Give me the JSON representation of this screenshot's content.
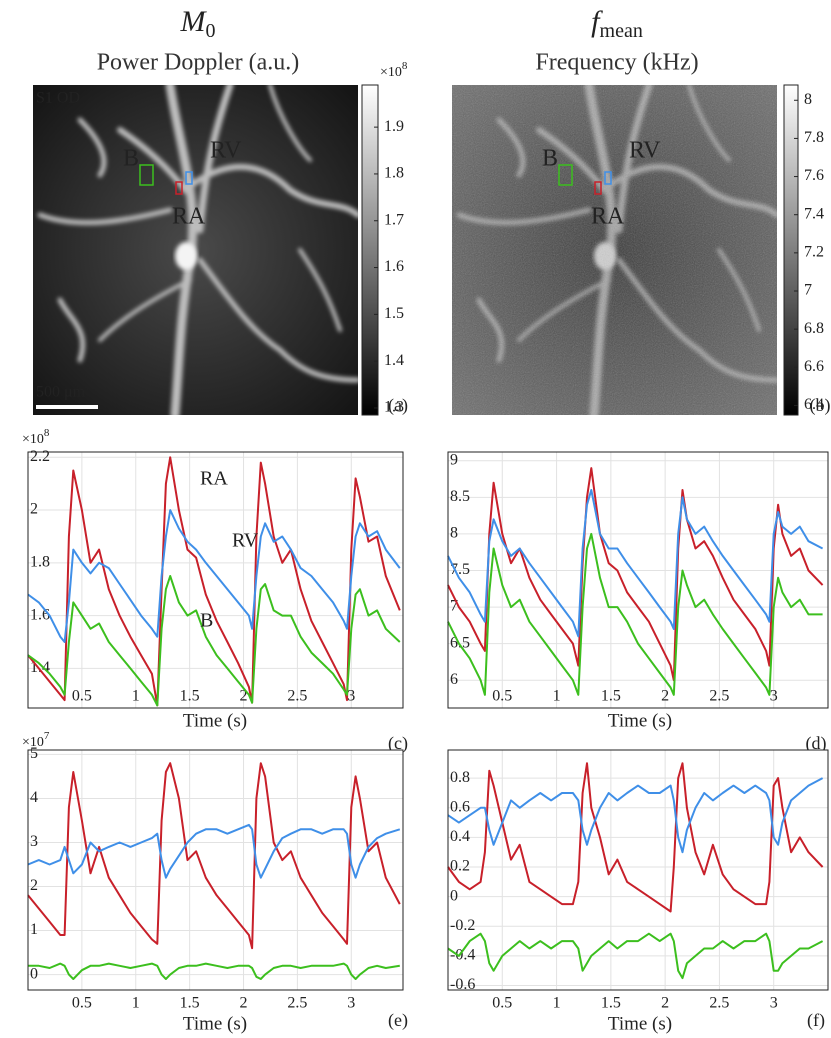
{
  "chart_data": [
    {
      "type": "image",
      "title": {
        "symbol": "M",
        "subscript": "0"
      },
      "subtitle": "Power Doppler (a.u.)",
      "label": "S1 OD",
      "scale_bar": "500 μm",
      "roi_labels": [
        "B",
        "RV",
        "RA"
      ],
      "roi_colors": [
        "#3cbf1e",
        "#3f8fe8",
        "#c8202a"
      ],
      "ylim": [
        1.285,
        1.99
      ],
      "yticks": [
        1.3,
        1.4,
        1.5,
        1.6,
        1.7,
        1.8,
        1.9
      ],
      "multiplier": {
        "base": "×10",
        "exponent": "8"
      },
      "panel": "(a)"
    },
    {
      "type": "image",
      "title": {
        "symbol": "f",
        "subscript": "mean"
      },
      "subtitle": "Frequency (kHz)",
      "roi_labels": [
        "B",
        "RV",
        "RA"
      ],
      "roi_colors": [
        "#3cbf1e",
        "#3f8fe8",
        "#c8202a"
      ],
      "ylim": [
        6.35,
        8.08
      ],
      "yticks": [
        6.4,
        6.6,
        6.8,
        7,
        7.2,
        7.4,
        7.6,
        7.8,
        8
      ],
      "panel": "(b)"
    },
    {
      "type": "line",
      "xlabel": "Time (s)",
      "panel": "(c)",
      "multiplier": {
        "base": "×10",
        "exponent": "8"
      },
      "grid": true,
      "xlim": [
        0,
        3.48
      ],
      "xticks": [
        0.5,
        1,
        1.5,
        2,
        2.5,
        3
      ],
      "ylim": [
        1.25,
        2.22
      ],
      "yticks": [
        1.4,
        1.6,
        1.8,
        2,
        2.2
      ],
      "x": [
        0,
        0.1,
        0.2,
        0.3,
        0.34,
        0.38,
        0.42,
        0.5,
        0.58,
        0.66,
        0.75,
        0.85,
        0.95,
        1.05,
        1.15,
        1.2,
        1.24,
        1.28,
        1.32,
        1.4,
        1.48,
        1.56,
        1.65,
        1.75,
        1.85,
        1.95,
        2.05,
        2.08,
        2.12,
        2.16,
        2.2,
        2.28,
        2.36,
        2.44,
        2.53,
        2.63,
        2.73,
        2.83,
        2.93,
        2.96,
        3.0,
        3.04,
        3.08,
        3.16,
        3.24,
        3.32,
        3.45
      ],
      "series": [
        {
          "name": "RA",
          "color": "#c8202a",
          "values": [
            1.45,
            1.4,
            1.35,
            1.3,
            1.28,
            1.9,
            2.15,
            2.0,
            1.8,
            1.85,
            1.7,
            1.6,
            1.52,
            1.45,
            1.38,
            1.26,
            1.7,
            2.1,
            2.2,
            2.0,
            1.85,
            1.82,
            1.68,
            1.58,
            1.5,
            1.42,
            1.33,
            1.27,
            1.9,
            2.18,
            2.1,
            1.9,
            1.8,
            1.85,
            1.7,
            1.58,
            1.5,
            1.42,
            1.34,
            1.28,
            1.85,
            2.12,
            2.05,
            1.88,
            1.9,
            1.75,
            1.62
          ]
        },
        {
          "name": "RV",
          "color": "#3f8fe8",
          "values": [
            1.68,
            1.65,
            1.6,
            1.52,
            1.5,
            1.65,
            1.85,
            1.8,
            1.76,
            1.8,
            1.78,
            1.72,
            1.66,
            1.6,
            1.55,
            1.52,
            1.75,
            1.9,
            2.0,
            1.93,
            1.88,
            1.85,
            1.8,
            1.75,
            1.7,
            1.65,
            1.6,
            1.55,
            1.75,
            1.9,
            1.95,
            1.88,
            1.9,
            1.85,
            1.78,
            1.75,
            1.7,
            1.65,
            1.58,
            1.55,
            1.75,
            1.9,
            1.95,
            1.9,
            1.92,
            1.85,
            1.78
          ]
        },
        {
          "name": "B",
          "color": "#3cbf1e",
          "values": [
            1.45,
            1.42,
            1.38,
            1.33,
            1.3,
            1.5,
            1.65,
            1.6,
            1.55,
            1.57,
            1.5,
            1.45,
            1.4,
            1.35,
            1.3,
            1.26,
            1.55,
            1.7,
            1.75,
            1.65,
            1.6,
            1.62,
            1.52,
            1.45,
            1.4,
            1.35,
            1.3,
            1.27,
            1.55,
            1.7,
            1.72,
            1.62,
            1.6,
            1.6,
            1.52,
            1.46,
            1.42,
            1.38,
            1.32,
            1.3,
            1.55,
            1.68,
            1.7,
            1.6,
            1.62,
            1.55,
            1.5
          ]
        }
      ]
    },
    {
      "type": "line",
      "xlabel": "Time (s)",
      "panel": "(d)",
      "grid": true,
      "xlim": [
        0,
        3.5
      ],
      "xticks": [
        0.5,
        1,
        1.5,
        2,
        2.5,
        3
      ],
      "ylim": [
        5.62,
        9.12
      ],
      "yticks": [
        6,
        6.5,
        7,
        7.5,
        8,
        8.5,
        9
      ],
      "x": [
        0,
        0.1,
        0.2,
        0.3,
        0.34,
        0.38,
        0.42,
        0.5,
        0.58,
        0.66,
        0.75,
        0.85,
        0.95,
        1.05,
        1.15,
        1.2,
        1.24,
        1.28,
        1.32,
        1.4,
        1.48,
        1.56,
        1.65,
        1.75,
        1.85,
        1.95,
        2.05,
        2.08,
        2.12,
        2.16,
        2.2,
        2.28,
        2.36,
        2.44,
        2.53,
        2.63,
        2.73,
        2.83,
        2.93,
        2.96,
        3.0,
        3.04,
        3.08,
        3.16,
        3.24,
        3.32,
        3.45
      ],
      "series": [
        {
          "color": "#c8202a",
          "values": [
            7.3,
            7.0,
            6.8,
            6.5,
            6.4,
            8.0,
            8.7,
            8.0,
            7.6,
            7.8,
            7.4,
            7.1,
            6.9,
            6.7,
            6.5,
            6.2,
            7.6,
            8.5,
            8.9,
            8.0,
            7.6,
            7.5,
            7.2,
            7.0,
            6.8,
            6.5,
            6.2,
            6.0,
            7.8,
            8.6,
            8.2,
            7.8,
            7.9,
            7.7,
            7.4,
            7.1,
            6.9,
            6.7,
            6.4,
            6.2,
            7.8,
            8.4,
            8.0,
            7.7,
            7.8,
            7.5,
            7.3
          ]
        },
        {
          "color": "#3f8fe8",
          "values": [
            7.7,
            7.4,
            7.2,
            6.9,
            6.8,
            7.9,
            8.2,
            7.9,
            7.7,
            7.8,
            7.6,
            7.4,
            7.2,
            7.0,
            6.8,
            6.6,
            7.8,
            8.4,
            8.6,
            8.0,
            7.8,
            7.8,
            7.6,
            7.4,
            7.2,
            7.0,
            6.8,
            6.7,
            8.0,
            8.5,
            8.2,
            8.0,
            8.1,
            7.9,
            7.7,
            7.5,
            7.3,
            7.1,
            6.9,
            6.8,
            8.0,
            8.3,
            8.1,
            8.0,
            8.1,
            7.9,
            7.8
          ]
        },
        {
          "color": "#3cbf1e",
          "values": [
            6.8,
            6.5,
            6.3,
            6.0,
            5.8,
            7.2,
            7.8,
            7.3,
            7.0,
            7.1,
            6.8,
            6.6,
            6.4,
            6.2,
            6.0,
            5.8,
            7.0,
            7.8,
            8.0,
            7.4,
            7.0,
            7.0,
            6.8,
            6.5,
            6.3,
            6.1,
            5.9,
            5.8,
            7.0,
            7.5,
            7.3,
            7.0,
            7.1,
            6.9,
            6.7,
            6.5,
            6.3,
            6.1,
            5.9,
            5.8,
            7.0,
            7.4,
            7.2,
            7.0,
            7.1,
            6.9,
            6.9
          ]
        }
      ]
    },
    {
      "type": "line",
      "xlabel": "Time (s)",
      "panel": "(e)",
      "multiplier": {
        "base": "×10",
        "exponent": "7"
      },
      "grid": true,
      "xlim": [
        0,
        3.48
      ],
      "xticks": [
        0.5,
        1,
        1.5,
        2,
        2.5,
        3
      ],
      "ylim": [
        -0.35,
        5.1
      ],
      "yticks": [
        0,
        1,
        2,
        3,
        4,
        5
      ],
      "x": [
        0,
        0.1,
        0.2,
        0.3,
        0.34,
        0.38,
        0.42,
        0.5,
        0.58,
        0.66,
        0.75,
        0.85,
        0.95,
        1.05,
        1.15,
        1.2,
        1.24,
        1.28,
        1.32,
        1.4,
        1.48,
        1.56,
        1.65,
        1.75,
        1.85,
        1.95,
        2.05,
        2.08,
        2.12,
        2.16,
        2.2,
        2.28,
        2.36,
        2.44,
        2.53,
        2.63,
        2.73,
        2.83,
        2.93,
        2.96,
        3.0,
        3.04,
        3.08,
        3.16,
        3.24,
        3.32,
        3.45
      ],
      "series": [
        {
          "color": "#c8202a",
          "values": [
            1.8,
            1.5,
            1.2,
            0.9,
            0.9,
            3.8,
            4.6,
            3.5,
            2.3,
            2.9,
            2.2,
            1.8,
            1.4,
            1.1,
            0.8,
            0.7,
            3.5,
            4.6,
            4.8,
            4.0,
            2.6,
            2.8,
            2.2,
            1.8,
            1.5,
            1.2,
            0.9,
            0.6,
            4.0,
            4.8,
            4.5,
            3.0,
            2.6,
            2.8,
            2.2,
            1.8,
            1.4,
            1.1,
            0.8,
            0.7,
            3.8,
            4.5,
            4.0,
            2.8,
            3.0,
            2.2,
            1.6
          ]
        },
        {
          "color": "#3f8fe8",
          "values": [
            2.5,
            2.6,
            2.5,
            2.6,
            2.9,
            2.6,
            2.3,
            2.5,
            3.0,
            2.8,
            2.9,
            3.0,
            2.9,
            3.0,
            3.1,
            3.2,
            2.6,
            2.2,
            2.4,
            2.7,
            3.0,
            3.2,
            3.3,
            3.3,
            3.2,
            3.3,
            3.4,
            3.3,
            2.5,
            2.2,
            2.4,
            2.8,
            3.1,
            3.2,
            3.3,
            3.3,
            3.2,
            3.3,
            3.3,
            3.2,
            2.5,
            2.2,
            2.5,
            2.9,
            3.1,
            3.2,
            3.3
          ]
        },
        {
          "color": "#3cbf1e",
          "values": [
            0.2,
            0.2,
            0.15,
            0.25,
            0.2,
            0.0,
            -0.1,
            0.1,
            0.2,
            0.2,
            0.25,
            0.2,
            0.15,
            0.2,
            0.25,
            0.2,
            0.0,
            -0.1,
            0.0,
            0.15,
            0.2,
            0.2,
            0.25,
            0.2,
            0.15,
            0.2,
            0.2,
            0.15,
            -0.05,
            -0.1,
            0.0,
            0.15,
            0.2,
            0.2,
            0.15,
            0.2,
            0.2,
            0.2,
            0.25,
            0.2,
            0.0,
            -0.1,
            0.0,
            0.15,
            0.2,
            0.15,
            0.2
          ]
        }
      ]
    },
    {
      "type": "line",
      "xlabel": "Time (s)",
      "panel": "(f)",
      "grid": true,
      "xlim": [
        0,
        3.5
      ],
      "xticks": [
        0.5,
        1,
        1.5,
        2,
        2.5,
        3
      ],
      "ylim": [
        -0.63,
        0.99
      ],
      "yticks": [
        -0.6,
        -0.4,
        -0.2,
        0,
        0.2,
        0.4,
        0.6,
        0.8
      ],
      "x": [
        0,
        0.1,
        0.2,
        0.3,
        0.34,
        0.38,
        0.42,
        0.5,
        0.58,
        0.66,
        0.75,
        0.85,
        0.95,
        1.05,
        1.15,
        1.2,
        1.24,
        1.28,
        1.32,
        1.4,
        1.48,
        1.56,
        1.65,
        1.75,
        1.85,
        1.95,
        2.05,
        2.08,
        2.12,
        2.16,
        2.2,
        2.28,
        2.36,
        2.44,
        2.53,
        2.63,
        2.73,
        2.83,
        2.93,
        2.96,
        3.0,
        3.04,
        3.08,
        3.16,
        3.24,
        3.32,
        3.45
      ],
      "series": [
        {
          "color": "#c8202a",
          "values": [
            0.2,
            0.1,
            0.05,
            0.1,
            0.3,
            0.85,
            0.75,
            0.5,
            0.25,
            0.35,
            0.1,
            0.05,
            0.0,
            -0.05,
            -0.05,
            0.1,
            0.7,
            0.9,
            0.6,
            0.4,
            0.15,
            0.25,
            0.1,
            0.05,
            0.0,
            -0.05,
            -0.1,
            0.2,
            0.8,
            0.9,
            0.6,
            0.3,
            0.15,
            0.35,
            0.15,
            0.05,
            0.0,
            -0.05,
            -0.05,
            0.1,
            0.75,
            0.8,
            0.6,
            0.3,
            0.4,
            0.3,
            0.2
          ]
        },
        {
          "color": "#3f8fe8",
          "values": [
            0.55,
            0.5,
            0.55,
            0.6,
            0.6,
            0.45,
            0.35,
            0.5,
            0.65,
            0.6,
            0.65,
            0.7,
            0.65,
            0.7,
            0.7,
            0.65,
            0.45,
            0.35,
            0.45,
            0.6,
            0.7,
            0.65,
            0.7,
            0.75,
            0.7,
            0.7,
            0.75,
            0.65,
            0.4,
            0.3,
            0.45,
            0.6,
            0.7,
            0.65,
            0.7,
            0.75,
            0.7,
            0.75,
            0.7,
            0.65,
            0.4,
            0.35,
            0.5,
            0.65,
            0.7,
            0.75,
            0.8
          ]
        },
        {
          "color": "#3cbf1e",
          "values": [
            -0.35,
            -0.4,
            -0.3,
            -0.25,
            -0.3,
            -0.45,
            -0.5,
            -0.4,
            -0.35,
            -0.3,
            -0.35,
            -0.3,
            -0.35,
            -0.3,
            -0.3,
            -0.35,
            -0.5,
            -0.45,
            -0.4,
            -0.35,
            -0.3,
            -0.35,
            -0.3,
            -0.3,
            -0.25,
            -0.3,
            -0.25,
            -0.3,
            -0.5,
            -0.55,
            -0.45,
            -0.4,
            -0.35,
            -0.35,
            -0.3,
            -0.35,
            -0.3,
            -0.3,
            -0.25,
            -0.3,
            -0.5,
            -0.5,
            -0.45,
            -0.4,
            -0.35,
            -0.35,
            -0.3
          ]
        }
      ]
    }
  ]
}
